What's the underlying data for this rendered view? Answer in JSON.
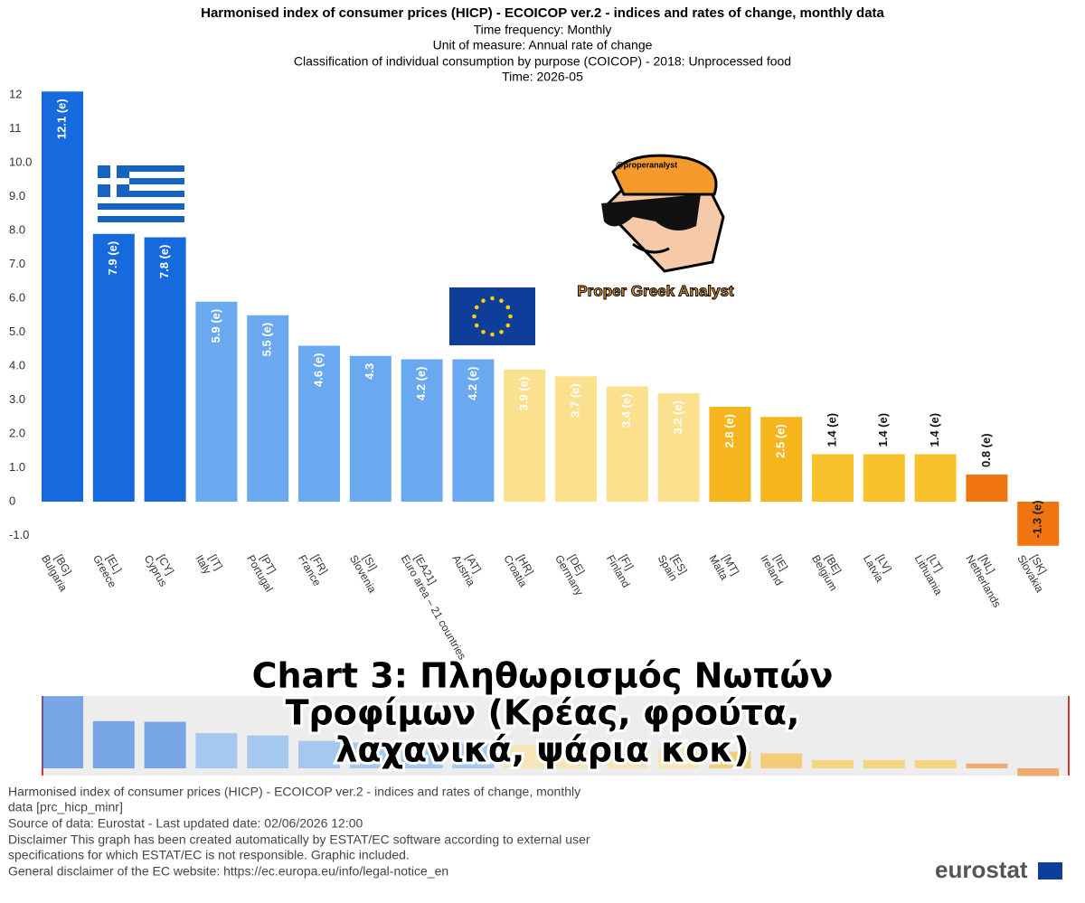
{
  "chart_data": {
    "type": "bar",
    "title": "Harmonised index of consumer prices (HICP) - ECOICOP ver.2 - indices and rates of change, monthly data",
    "subtitle": [
      "Time frequency:  Monthly",
      "Unit of measure:  Annual rate of change",
      "Classification of individual consumption by purpose (COICOP) - 2018:  Unprocessed food",
      "Time:  2026-05"
    ],
    "categories": [
      [
        "[BG]",
        "Bulgaria"
      ],
      [
        "[EL]",
        "Greece"
      ],
      [
        "[CY]",
        "Cyprus"
      ],
      [
        "[IT]",
        "Italy"
      ],
      [
        "[PT]",
        "Portugal"
      ],
      [
        "[FR]",
        "France"
      ],
      [
        "[SI]",
        "Slovenia"
      ],
      [
        "[EA21]",
        "Euro area – 21 countries"
      ],
      [
        "[AT]",
        "Austria"
      ],
      [
        "[HR]",
        "Croatia"
      ],
      [
        "[DE]",
        "Germany"
      ],
      [
        "[FI]",
        "Finland"
      ],
      [
        "[ES]",
        "Spain"
      ],
      [
        "[MT]",
        "Malta"
      ],
      [
        "[IE]",
        "Ireland"
      ],
      [
        "[BE]",
        "Belgium"
      ],
      [
        "[LV]",
        "Latvia"
      ],
      [
        "[LT]",
        "Lithuania"
      ],
      [
        "[NL]",
        "Netherlands"
      ],
      [
        "[SK]",
        "Slovakia"
      ]
    ],
    "values": [
      12.1,
      7.9,
      7.8,
      5.9,
      5.5,
      4.6,
      4.3,
      4.2,
      4.2,
      3.9,
      3.7,
      3.4,
      3.2,
      2.8,
      2.5,
      1.4,
      1.4,
      1.4,
      0.8,
      -1.3
    ],
    "value_labels": [
      "12.1 (e)",
      "7.9 (e)",
      "7.8 (e)",
      "5.9 (e)",
      "5.5 (e)",
      "4.6 (e)",
      "4.3",
      "4.2 (e)",
      "4.2 (e)",
      "3.9 (e)",
      "3.7 (e)",
      "3.4 (e)",
      "3.2 (e)",
      "2.8 (e)",
      "2.5 (e)",
      "1.4 (e)",
      "1.4 (e)",
      "1.4 (e)",
      "0.8 (e)",
      "-1.3 (e)"
    ],
    "colors": [
      "#1769de",
      "#1769de",
      "#1769de",
      "#6aa9f0",
      "#6aa9f0",
      "#6aa9f0",
      "#6aa9f0",
      "#6aa9f0",
      "#6aa9f0",
      "#fbe08e",
      "#fbe08e",
      "#fbe08e",
      "#fbe08e",
      "#f6b51c",
      "#f6b51c",
      "#f9c12a",
      "#f9c12a",
      "#f9c12a",
      "#f07511",
      "#f07511"
    ],
    "ylim": [
      -1.3,
      12.1
    ],
    "yticks": [
      12,
      11,
      {
        "value": 10,
        "label": "10.0"
      },
      {
        "value": 9,
        "label": "9.0"
      },
      {
        "value": 8,
        "label": "8.0"
      },
      {
        "value": 7,
        "label": "7.0"
      },
      {
        "value": 6,
        "label": "6.0"
      },
      {
        "value": 5,
        "label": "5.0"
      },
      {
        "value": 4,
        "label": "4.0"
      },
      {
        "value": 3,
        "label": "3.0"
      },
      {
        "value": 2,
        "label": "2.0"
      },
      {
        "value": 1,
        "label": "1.0"
      },
      0,
      {
        "value": -1,
        "label": "-1.0"
      }
    ],
    "grid": false
  },
  "overlay": {
    "handle": "@properanalyst",
    "brand": "Proper Greek Analyst",
    "headline": [
      "Chart 3: Πληθωρισμός Νωπών",
      "Τροφίμων (Κρέας, φρούτα,",
      "λαχανικά, ψάρια κοκ)"
    ]
  },
  "footer": {
    "lines": [
      "Harmonised index of consumer prices (HICP) - ECOICOP ver.2 - indices and rates of change, monthly",
      "data [prc_hicp_minr]",
      "Source of data: Eurostat - Last updated date: 02/06/2026 12:00",
      "Disclaimer This graph has been created automatically by ESTAT/EC software according to external user",
      "specifications for which ESTAT/EC is not responsible. Graphic included.",
      "General disclaimer of the EC website: https://ec.europa.eu/info/legal-notice_en"
    ],
    "logo": "eurostat"
  }
}
